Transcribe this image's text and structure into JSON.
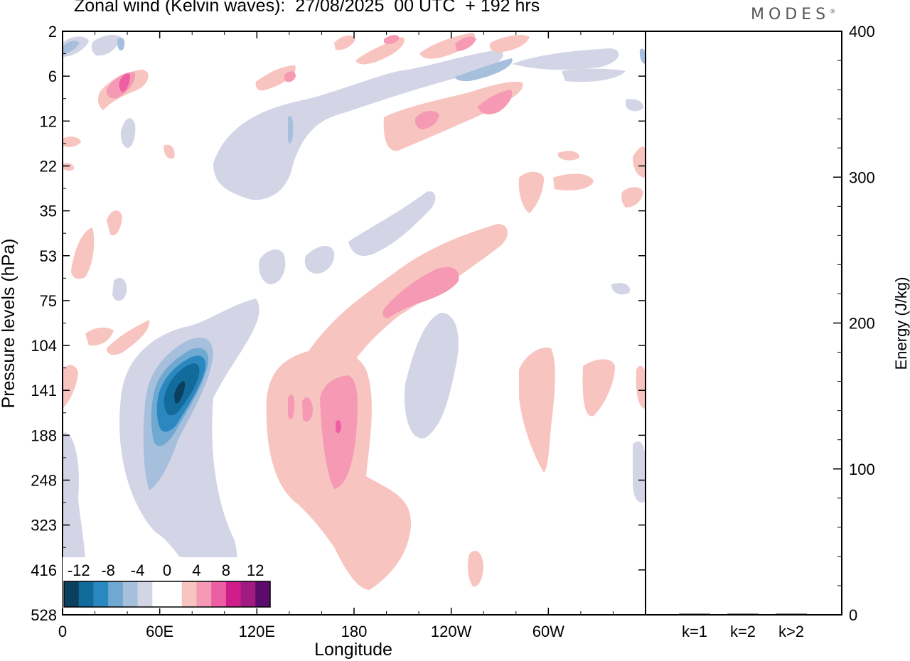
{
  "title": "Zonal wind (Kelvin waves):  27/08/2025  00 UTC  + 192 hrs",
  "logo": "MODES",
  "logo_mark": "®",
  "chart_data": [
    {
      "type": "heatmap",
      "xlabel": "Longitude",
      "ylabel": "Pressure levels (hPa)",
      "x_ticks": [
        "0",
        "60E",
        "120E",
        "180",
        "120W",
        "60W"
      ],
      "y_ticks": [
        "2",
        "6",
        "12",
        "22",
        "35",
        "53",
        "75",
        "104",
        "141",
        "188",
        "248",
        "323",
        "416",
        "528"
      ],
      "colorbar": {
        "labels": [
          "-12",
          "-8",
          "-4",
          "0",
          "4",
          "8",
          "12"
        ],
        "colors": [
          "#0b3f5e",
          "#136b9b",
          "#2a87bf",
          "#6fa8d0",
          "#a5bfdd",
          "#d3d5e6",
          "#ffffff",
          "#ffffff",
          "#f8c4c0",
          "#f599b4",
          "#ec5fa2",
          "#cf1d8c",
          "#a01a80",
          "#5b0b6b"
        ]
      },
      "features": [
        {
          "sign": "negative",
          "peak": -14,
          "lon": [
            45,
            95
          ],
          "levels": "104-330"
        },
        {
          "sign": "positive",
          "peak": 9,
          "lon": [
            130,
            215
          ],
          "levels": "104-460"
        },
        {
          "sign": "positive",
          "peak": 7,
          "lon": [
            205,
            270
          ],
          "levels": "53-104"
        },
        {
          "sign": "positive",
          "peak": 7,
          "lon": [
            200,
            285
          ],
          "levels": "6-22"
        },
        {
          "sign": "negative",
          "peak": -5,
          "lon": [
            90,
            210
          ],
          "levels": "6-35"
        }
      ]
    },
    {
      "type": "bar",
      "ylabel": "Energy (J/kg)",
      "categories": [
        "k=1",
        "k=2",
        "k>2"
      ],
      "values": [
        0.4,
        0.3,
        0.3
      ],
      "ylim": [
        0,
        400
      ],
      "y_ticks": [
        "0",
        "100",
        "200",
        "300",
        "400"
      ]
    }
  ]
}
